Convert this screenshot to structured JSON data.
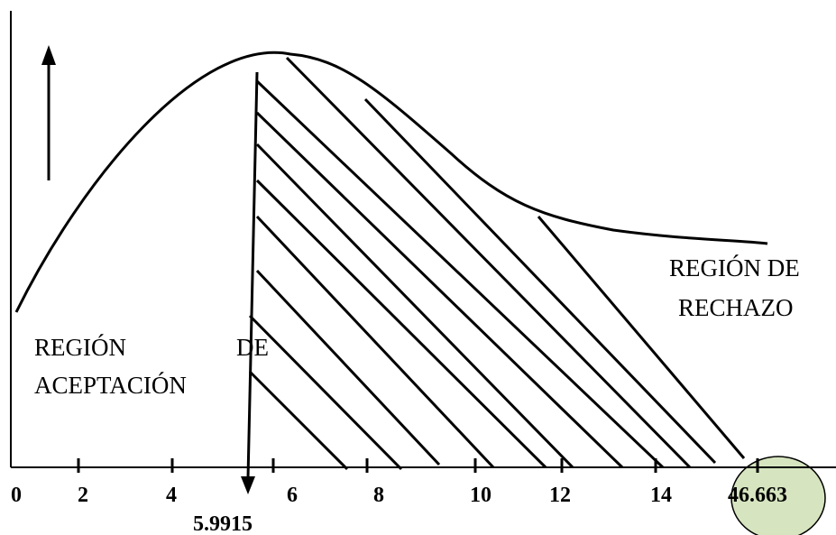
{
  "chart_data": {
    "type": "diagram",
    "x_tick_labels": [
      "0",
      "2",
      "4",
      "6",
      "8",
      "10",
      "12",
      "14"
    ],
    "critical_value_label": "5.9915",
    "test_statistic_label": "46.663",
    "acceptance_region_label": [
      "REGIÓN",
      "DE",
      "ACEPTACIÓN"
    ],
    "rejection_region_label": [
      "REGIÓN DE",
      "RECHAZO"
    ]
  },
  "colors": {
    "stroke": "#000000",
    "highlight_circle": "#d6e5bf"
  },
  "icons": {
    "up_arrow": "arrow-up-icon",
    "down_arrow": "arrow-down-icon"
  }
}
